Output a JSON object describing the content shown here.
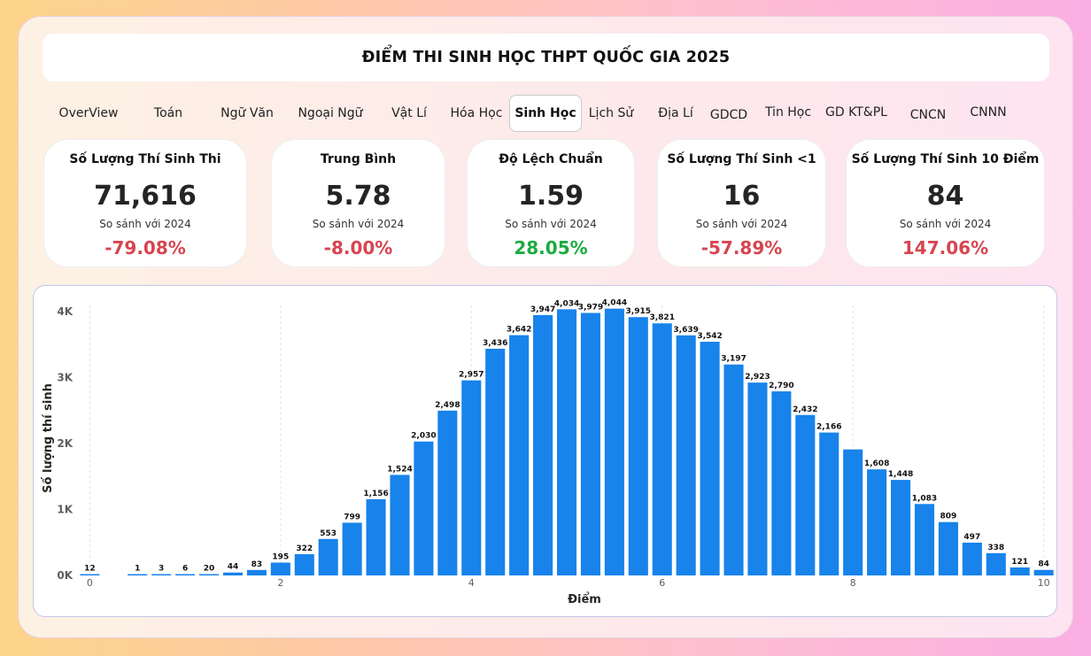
{
  "header": {
    "title": "ĐIỂM THI SINH HỌC THPT QUỐC GIA 2025"
  },
  "tabs": [
    {
      "label": "OverView"
    },
    {
      "label": "Toán"
    },
    {
      "label": "Ngữ Văn"
    },
    {
      "label": "Ngoại Ngữ"
    },
    {
      "label": "Vật Lí"
    },
    {
      "label": "Hóa Học"
    },
    {
      "label": "Sinh Học",
      "active": true
    },
    {
      "label": "Lịch Sử"
    },
    {
      "label": "Địa Lí"
    },
    {
      "label": "GDCD"
    },
    {
      "label": "Tin Học"
    },
    {
      "label": "GD KT&PL"
    },
    {
      "label": "CNCN"
    },
    {
      "label": "CNNN"
    }
  ],
  "cards": [
    {
      "title": "Số Lượng Thí Sinh Thi",
      "value": "71,616",
      "compare": "So sánh với 2024",
      "change": "-79.08%",
      "trend": "negative"
    },
    {
      "title": "Trung Bình",
      "value": "5.78",
      "compare": "So sánh với 2024",
      "change": "-8.00%",
      "trend": "negative"
    },
    {
      "title": "Độ Lệch Chuẩn",
      "value": "1.59",
      "compare": "So sánh với 2024",
      "change": "28.05%",
      "trend": "positive"
    },
    {
      "title": "Số Lượng Thí Sinh <1",
      "value": "16",
      "compare": "So sánh với 2024",
      "change": "-57.89%",
      "trend": "negative"
    },
    {
      "title": "Số Lượng Thí Sinh 10 Điểm",
      "value": "84",
      "compare": "So sánh với 2024",
      "change": "147.06%",
      "trend": "negative"
    }
  ],
  "colors": {
    "bar": "#1783eb",
    "negative": "#d64550",
    "positive": "#1aab40"
  },
  "chart_data": {
    "type": "bar",
    "xlabel": "Điểm",
    "ylabel": "Số lượng thí sinh",
    "x": [
      0,
      0.5,
      0.75,
      1,
      1.25,
      1.5,
      1.75,
      2,
      2.25,
      2.5,
      2.75,
      3,
      3.25,
      3.5,
      3.75,
      4,
      4.25,
      4.5,
      4.75,
      5,
      5.25,
      5.5,
      5.75,
      6,
      6.25,
      6.5,
      6.75,
      7,
      7.25,
      7.5,
      7.75,
      8,
      8.25,
      8.5,
      8.75,
      9,
      9.25,
      9.5,
      9.75,
      10
    ],
    "values": [
      12,
      1,
      3,
      6,
      20,
      44,
      83,
      195,
      322,
      553,
      799,
      1156,
      1524,
      2030,
      2498,
      2957,
      3436,
      3642,
      3947,
      4034,
      3979,
      4044,
      3915,
      3821,
      3639,
      3542,
      3197,
      2923,
      2790,
      2432,
      2166,
      1910,
      1608,
      1448,
      1083,
      809,
      497,
      338,
      121,
      84
    ],
    "labels": [
      "12",
      "1",
      "3",
      "6",
      "20",
      "44",
      "83",
      "195",
      "322",
      "553",
      "799",
      "1,156",
      "1,524",
      "2,030",
      "2,498",
      "2,957",
      "3,436",
      "3,642",
      "3,947",
      "4,034",
      "3,979",
      "4,044",
      "3,915",
      "3,821",
      "3,639",
      "3,542",
      "3,197",
      "2,923",
      "2,790",
      "2,432",
      "2,166",
      "",
      "1,608",
      "1,448",
      "1,083",
      "809",
      "497",
      "338",
      "121",
      "84"
    ],
    "xticks": [
      0,
      2,
      4,
      6,
      8,
      10
    ],
    "yticks": [
      {
        "value": 0,
        "label": "0K"
      },
      {
        "value": 1000,
        "label": "1K"
      },
      {
        "value": 2000,
        "label": "2K"
      },
      {
        "value": 3000,
        "label": "3K"
      },
      {
        "value": 4000,
        "label": "4K"
      }
    ],
    "xlim": [
      0,
      10
    ],
    "ylim": [
      0,
      4200
    ],
    "grid": "vertical-dashed"
  }
}
